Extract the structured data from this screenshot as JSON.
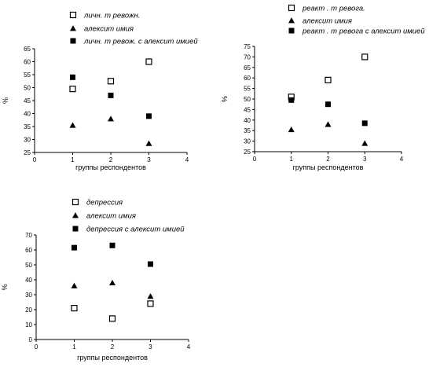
{
  "chart_data": [
    {
      "type": "scatter",
      "title": "",
      "xlabel": "группы респондентов",
      "ylabel": "%",
      "xlim": [
        0,
        4
      ],
      "ylim": [
        25,
        65
      ],
      "xticks": [
        0,
        1,
        2,
        3,
        4
      ],
      "yticks": [
        25,
        30,
        35,
        40,
        45,
        50,
        55,
        60,
        65
      ],
      "grid": false,
      "legend": "top",
      "series": [
        {
          "name": "личн. т ревожн.",
          "marker": "open-square",
          "x": [
            1,
            2,
            3
          ],
          "y": [
            49.5,
            52.5,
            60
          ]
        },
        {
          "name": "алексит имия",
          "marker": "triangle",
          "x": [
            1,
            2,
            3
          ],
          "y": [
            35.5,
            38,
            28.5
          ]
        },
        {
          "name": "личн. т ревож. с алексит имией",
          "marker": "filled-square",
          "x": [
            1,
            2,
            3
          ],
          "y": [
            54,
            47,
            39
          ]
        }
      ]
    },
    {
      "type": "scatter",
      "title": "",
      "xlabel": "группы респондентов",
      "ylabel": "%",
      "xlim": [
        0,
        4
      ],
      "ylim": [
        25,
        75
      ],
      "xticks": [
        0,
        1,
        2,
        3,
        4
      ],
      "yticks": [
        25,
        30,
        35,
        40,
        45,
        50,
        55,
        60,
        65,
        70,
        75
      ],
      "grid": false,
      "legend": "top",
      "series": [
        {
          "name": "реакт . т ревога.",
          "marker": "open-square",
          "x": [
            1,
            2,
            3
          ],
          "y": [
            51,
            59,
            70
          ]
        },
        {
          "name": "алексит имия",
          "marker": "triangle",
          "x": [
            1,
            2,
            3
          ],
          "y": [
            35.5,
            38,
            29
          ]
        },
        {
          "name": "реакт . т ревога с алексит имией",
          "marker": "filled-square",
          "x": [
            1,
            2,
            3
          ],
          "y": [
            49.5,
            47.5,
            38.5
          ]
        }
      ]
    },
    {
      "type": "scatter",
      "title": "",
      "xlabel": "группы респондентов",
      "ylabel": "%",
      "xlim": [
        0,
        4
      ],
      "ylim": [
        0,
        70
      ],
      "xticks": [
        0,
        1,
        2,
        3,
        4
      ],
      "yticks": [
        0,
        10,
        20,
        30,
        40,
        50,
        60,
        70
      ],
      "grid": false,
      "legend": "top",
      "series": [
        {
          "name": "депрессия",
          "marker": "open-square",
          "x": [
            1,
            2,
            3
          ],
          "y": [
            21,
            14,
            24
          ]
        },
        {
          "name": "алексит имия",
          "marker": "triangle",
          "x": [
            1,
            2,
            3
          ],
          "y": [
            36,
            38,
            29
          ]
        },
        {
          "name": "депрессия с алексит имией",
          "marker": "filled-square",
          "x": [
            1,
            2,
            3
          ],
          "y": [
            61.5,
            63,
            50.5
          ]
        }
      ]
    }
  ]
}
